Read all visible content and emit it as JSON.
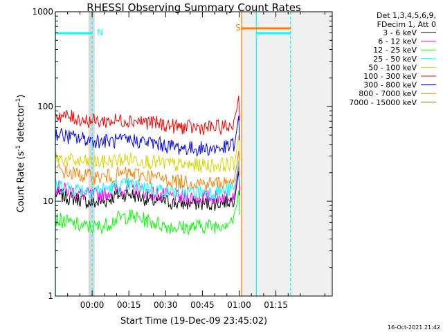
{
  "chart_data": {
    "type": "line",
    "title": "RHESSI Observing Summary Count Rates",
    "xlabel": "Start Time (19-Dec-09 23:45:02)",
    "ylabel": "Count Rate (s",
    "ylabel_sup1": "-1",
    "ylabel_mid": " detector",
    "ylabel_sup2": "-1",
    "ylabel_end": ")",
    "y_scale": "log",
    "ylim": [
      1,
      1000
    ],
    "xlim_minutes": [
      -15,
      98
    ],
    "grid": false,
    "legend_position": "top-right outside",
    "x_ticks": [
      {
        "minutes": 0,
        "label": "00:00"
      },
      {
        "minutes": 15,
        "label": "00:15"
      },
      {
        "minutes": 30,
        "label": "00:30"
      },
      {
        "minutes": 45,
        "label": "00:45"
      },
      {
        "minutes": 60,
        "label": "01:00"
      },
      {
        "minutes": 75,
        "label": "01:15"
      }
    ],
    "y_ticks": [
      {
        "value": 1,
        "label": "1"
      },
      {
        "value": 10,
        "label": "10"
      },
      {
        "value": 100,
        "label": "100"
      },
      {
        "value": 1000,
        "label": "1000"
      }
    ],
    "legend_header": [
      "Det 1,3,4,5,6,9,",
      "FDecim 1, Att 0"
    ],
    "series": [
      {
        "name": "3 - 6 keV",
        "color": "#000000",
        "points": [
          [
            -15,
            12
          ],
          [
            -10,
            11
          ],
          [
            -5,
            10.5
          ],
          [
            0,
            9.5
          ],
          [
            5,
            10
          ],
          [
            10,
            11.5
          ],
          [
            15,
            12
          ],
          [
            20,
            11
          ],
          [
            25,
            10
          ],
          [
            30,
            10
          ],
          [
            35,
            9.5
          ],
          [
            40,
            9.5
          ],
          [
            45,
            9.5
          ],
          [
            50,
            9.5
          ],
          [
            55,
            10
          ],
          [
            58,
            10.5
          ]
        ]
      },
      {
        "name": "6 - 12 keV",
        "color": "#ff00ff",
        "points": [
          [
            -15,
            14
          ],
          [
            -10,
            13
          ],
          [
            -5,
            12
          ],
          [
            0,
            11.5
          ],
          [
            5,
            12
          ],
          [
            10,
            13.5
          ],
          [
            15,
            14
          ],
          [
            20,
            13
          ],
          [
            25,
            12
          ],
          [
            30,
            11.5
          ],
          [
            35,
            11
          ],
          [
            40,
            11
          ],
          [
            45,
            11
          ],
          [
            50,
            11
          ],
          [
            55,
            11.5
          ],
          [
            58,
            12
          ]
        ]
      },
      {
        "name": "12 - 25 keV",
        "color": "#00ff00",
        "points": [
          [
            -15,
            6.5
          ],
          [
            -10,
            6
          ],
          [
            -5,
            5.5
          ],
          [
            0,
            5.3
          ],
          [
            5,
            5.5
          ],
          [
            10,
            6.5
          ],
          [
            15,
            7
          ],
          [
            20,
            6.5
          ],
          [
            25,
            6
          ],
          [
            30,
            5.5
          ],
          [
            35,
            5.3
          ],
          [
            40,
            5.3
          ],
          [
            45,
            5.5
          ],
          [
            50,
            5.5
          ],
          [
            55,
            6
          ],
          [
            58,
            6.5
          ]
        ]
      },
      {
        "name": "25 - 50 keV",
        "color": "#00ffff",
        "points": [
          [
            -15,
            15
          ],
          [
            -10,
            14
          ],
          [
            -5,
            13.5
          ],
          [
            0,
            13
          ],
          [
            5,
            13.5
          ],
          [
            10,
            14.5
          ],
          [
            15,
            15
          ],
          [
            20,
            14.5
          ],
          [
            25,
            13.5
          ],
          [
            30,
            13
          ],
          [
            35,
            12.5
          ],
          [
            40,
            12.5
          ],
          [
            45,
            12.5
          ],
          [
            50,
            12.5
          ],
          [
            55,
            13
          ],
          [
            58,
            13.5
          ]
        ]
      },
      {
        "name": "50 - 100 keV",
        "color": "#d7d700",
        "points": [
          [
            -15,
            29
          ],
          [
            -10,
            27
          ],
          [
            -5,
            26
          ],
          [
            0,
            26
          ],
          [
            5,
            26
          ],
          [
            10,
            27
          ],
          [
            15,
            28
          ],
          [
            20,
            27
          ],
          [
            25,
            26
          ],
          [
            30,
            25
          ],
          [
            35,
            24
          ],
          [
            40,
            24
          ],
          [
            45,
            24
          ],
          [
            50,
            24
          ],
          [
            55,
            24.5
          ],
          [
            58,
            25
          ]
        ]
      },
      {
        "name": "100 - 300 keV",
        "color": "#ff0000",
        "points": [
          [
            -15,
            82
          ],
          [
            -10,
            78
          ],
          [
            -5,
            74
          ],
          [
            0,
            70
          ],
          [
            5,
            70
          ],
          [
            10,
            71
          ],
          [
            15,
            72
          ],
          [
            20,
            70
          ],
          [
            25,
            67
          ],
          [
            30,
            64
          ],
          [
            35,
            61
          ],
          [
            40,
            60
          ],
          [
            45,
            60
          ],
          [
            50,
            60
          ],
          [
            55,
            61
          ],
          [
            58,
            65
          ]
        ]
      },
      {
        "name": "300 - 800 keV",
        "color": "#0000ff",
        "points": [
          [
            -15,
            52
          ],
          [
            -10,
            48
          ],
          [
            -5,
            46
          ],
          [
            0,
            44
          ],
          [
            5,
            43
          ],
          [
            10,
            43
          ],
          [
            15,
            44
          ],
          [
            20,
            43
          ],
          [
            25,
            41
          ],
          [
            30,
            39
          ],
          [
            35,
            37
          ],
          [
            40,
            36
          ],
          [
            45,
            36
          ],
          [
            50,
            36
          ],
          [
            55,
            37
          ],
          [
            58,
            40
          ]
        ]
      },
      {
        "name": "800 - 7000 keV",
        "color": "#ff8000",
        "points": [
          [
            -15,
            22
          ],
          [
            -10,
            20
          ],
          [
            -5,
            19
          ],
          [
            0,
            18
          ],
          [
            5,
            18
          ],
          [
            10,
            19
          ],
          [
            15,
            19.5
          ],
          [
            20,
            19
          ],
          [
            25,
            18
          ],
          [
            30,
            17
          ],
          [
            35,
            16
          ],
          [
            40,
            16
          ],
          [
            45,
            15.5
          ],
          [
            50,
            15.5
          ],
          [
            55,
            16
          ],
          [
            58,
            17
          ]
        ]
      },
      {
        "name": "7000 - 15000 keV",
        "color": "#808000",
        "points": []
      }
    ],
    "annotations": [
      {
        "text": "N",
        "color": "#00ffff"
      },
      {
        "text": "S",
        "color": "#ff8000"
      }
    ]
  },
  "timestamp": "16-Oct-2021 21:42"
}
